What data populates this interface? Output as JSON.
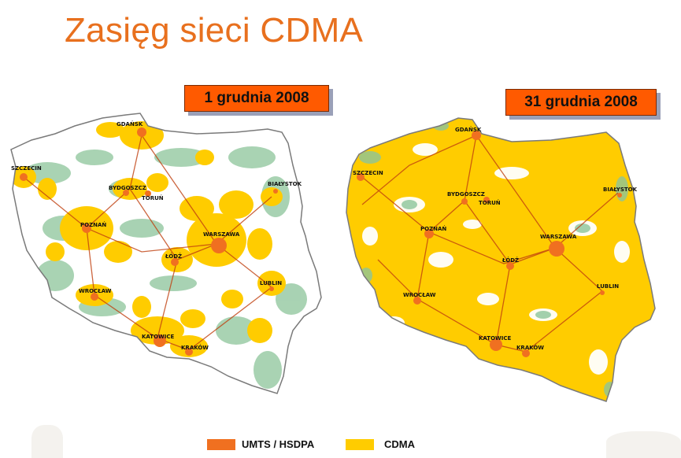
{
  "title": "Zasięg sieci CDMA",
  "maps": [
    {
      "date_label": "1 grudnia 2008",
      "cities": [
        "GDAŃSK",
        "SZCZECIN",
        "BYDGOSZCZ",
        "TORUŃ",
        "BIAŁYSTOK",
        "POZNAŃ",
        "WARSZAWA",
        "ŁÓDŹ",
        "LUBLIN",
        "WROCŁAW",
        "KATOWICE",
        "KRAKÓW"
      ]
    },
    {
      "date_label": "31 grudnia 2008",
      "cities": [
        "GDAŃSK",
        "SZCZECIN",
        "BYDGOSZCZ",
        "TORUŃ",
        "BIAŁYSTOK",
        "POZNAŃ",
        "WARSZAWA",
        "ŁÓDŹ",
        "LUBLIN",
        "WROCŁAW",
        "KATOWICE",
        "KRAKÓW"
      ]
    }
  ],
  "legend": [
    {
      "label": "UMTS / HSDPA",
      "color": "#f07020"
    },
    {
      "label": "CDMA",
      "color": "#ffcc00"
    }
  ],
  "colors": {
    "title": "#e8701e",
    "date_box": "#ff5a00",
    "land": "#ffffff",
    "forest": "#8cc49a",
    "roads": "#c04010",
    "border": "#7a7a7a"
  }
}
